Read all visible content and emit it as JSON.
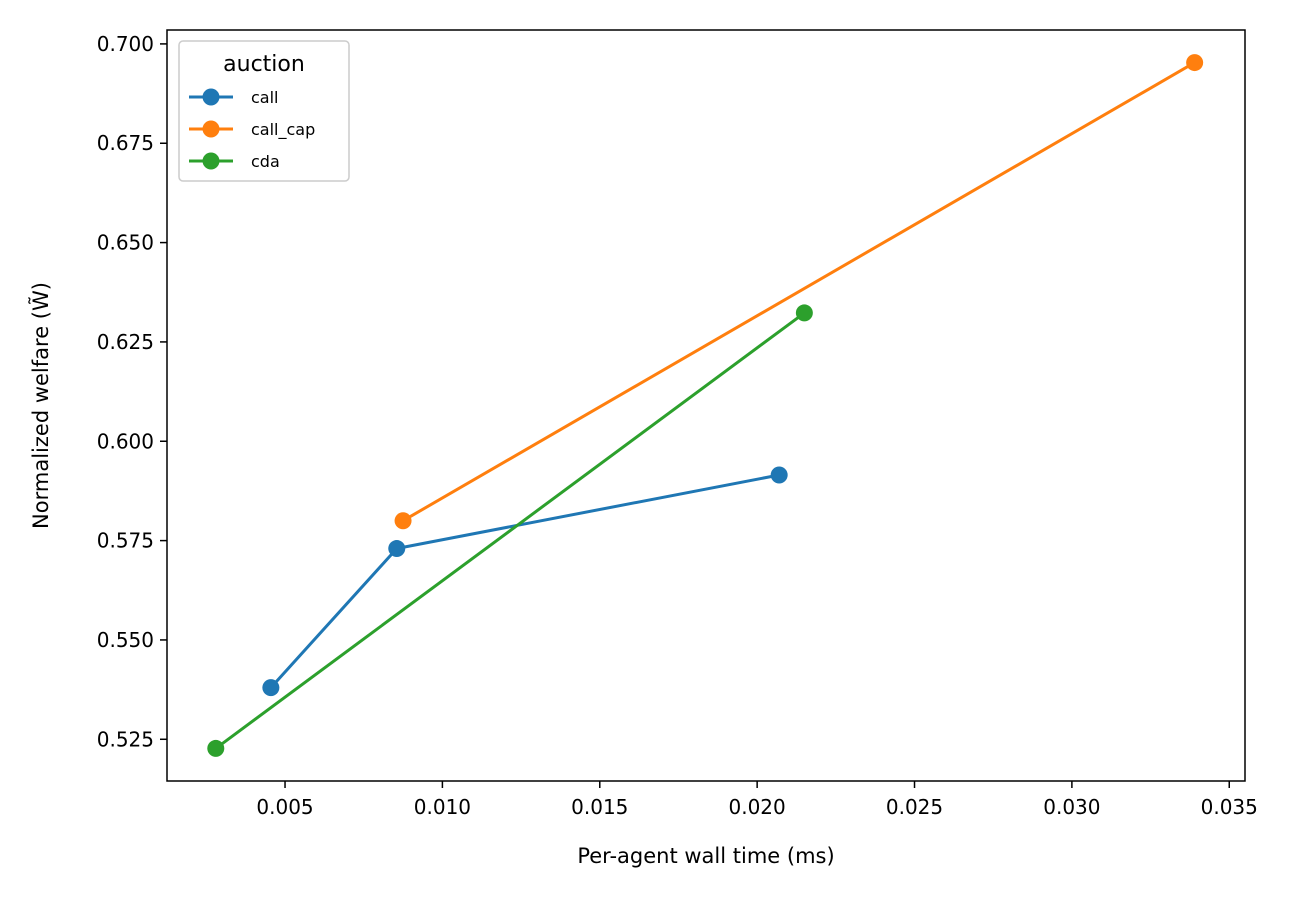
{
  "chart_data": {
    "type": "line",
    "title": "",
    "xlabel": "Per-agent wall time (ms)",
    "ylabel": "Normalized welfare (W̃)",
    "xlim": [
      0.00125,
      0.0355
    ],
    "ylim": [
      0.5145,
      0.7035
    ],
    "x_ticks": [
      0.005,
      0.01,
      0.015,
      0.02,
      0.025,
      0.03,
      0.035
    ],
    "x_tick_labels": [
      "0.005",
      "0.010",
      "0.015",
      "0.020",
      "0.025",
      "0.030",
      "0.035"
    ],
    "y_ticks": [
      0.525,
      0.55,
      0.575,
      0.6,
      0.625,
      0.65,
      0.675,
      0.7
    ],
    "y_tick_labels": [
      "0.525",
      "0.550",
      "0.575",
      "0.600",
      "0.625",
      "0.650",
      "0.675",
      "0.700"
    ],
    "grid": false,
    "legend": {
      "title": "auction",
      "placement": "top-left"
    },
    "series": [
      {
        "name": "call",
        "color": "#1f77b4",
        "x": [
          0.00455,
          0.00855,
          0.0207
        ],
        "y": [
          0.538,
          0.573,
          0.5915
        ]
      },
      {
        "name": "call_cap",
        "color": "#ff7f0e",
        "x": [
          0.00875,
          0.0339
        ],
        "y": [
          0.58,
          0.6953
        ]
      },
      {
        "name": "cda",
        "color": "#2ca02c",
        "x": [
          0.0028,
          0.0215
        ],
        "y": [
          0.5227,
          0.6323
        ]
      }
    ]
  }
}
